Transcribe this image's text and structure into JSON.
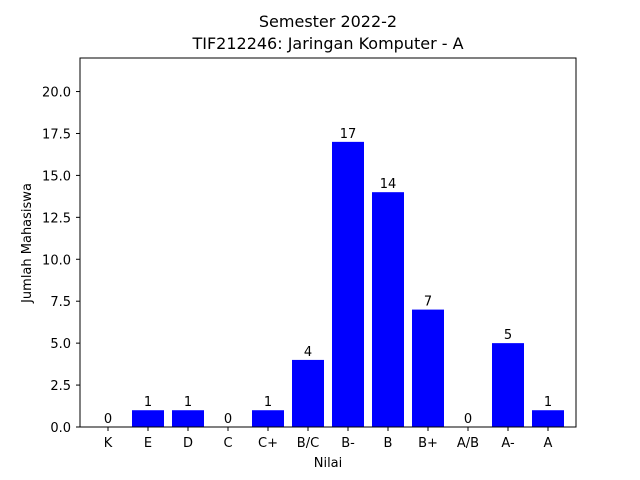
{
  "chart_data": {
    "type": "bar",
    "title": "Semester 2022-2",
    "subtitle": "TIF212246: Jaringan Komputer - A",
    "xlabel": "Nilai",
    "ylabel": "Jumlah Mahasiswa",
    "categories": [
      "K",
      "E",
      "D",
      "C",
      "C+",
      "B/C",
      "B-",
      "B",
      "B+",
      "A/B",
      "A-",
      "A"
    ],
    "values": [
      0,
      1,
      1,
      0,
      1,
      4,
      17,
      14,
      7,
      0,
      5,
      1
    ],
    "ylim": [
      0,
      22
    ],
    "yticks": [
      "0.0",
      "2.5",
      "5.0",
      "7.5",
      "10.0",
      "12.5",
      "15.0",
      "17.5",
      "20.0"
    ],
    "grid": false,
    "colors": {
      "bar": "#0000ff",
      "axis": "#000000",
      "text": "#000000"
    }
  }
}
